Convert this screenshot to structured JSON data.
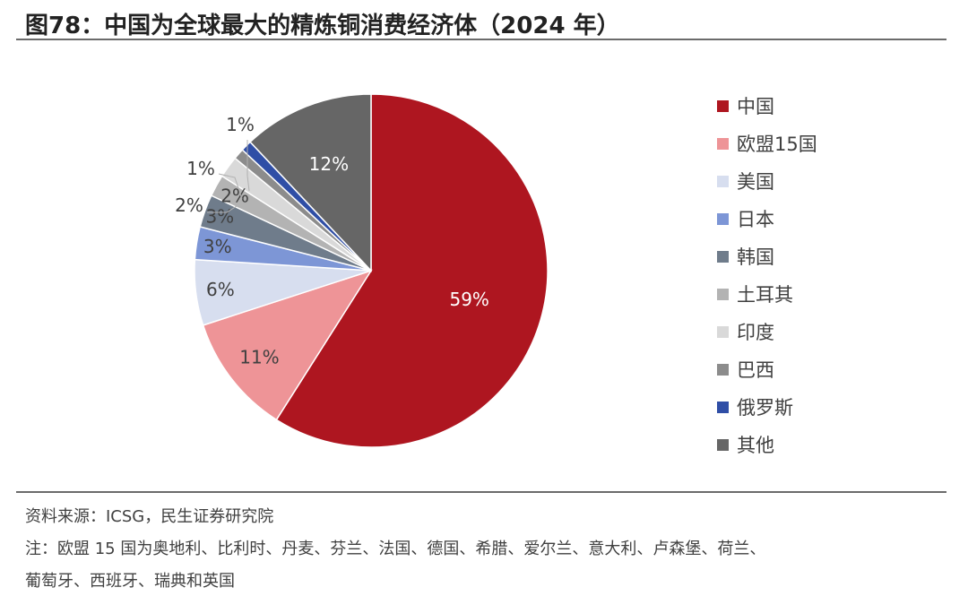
{
  "page": {
    "title": "图78：中国为全球最大的精炼铜消费经济体（2024 年）",
    "source": "资料来源：ICSG，民生证券研究院",
    "note_line1": "注：欧盟 15 国为奥地利、比利时、丹麦、芬兰、法国、德国、希腊、爱尔兰、意大利、卢森堡、荷兰、",
    "note_line2": "葡萄牙、西班牙、瑞典和英国"
  },
  "chart_data": {
    "type": "pie",
    "start_angle_deg": 0,
    "direction": "clockwise",
    "legend_position": "right",
    "slices": [
      {
        "label": "中国",
        "value": 59,
        "display": "59%",
        "color": "#ae1620"
      },
      {
        "label": "欧盟15国",
        "value": 11,
        "display": "11%",
        "color": "#ee9497"
      },
      {
        "label": "美国",
        "value": 6,
        "display": "6%",
        "color": "#d7deef"
      },
      {
        "label": "日本",
        "value": 3,
        "display": "3%",
        "color": "#7d96d6"
      },
      {
        "label": "韩国",
        "value": 3,
        "display": "3%",
        "color": "#6f7c8b"
      },
      {
        "label": "土耳其",
        "value": 2,
        "display": "2%",
        "color": "#b3b3b3"
      },
      {
        "label": "印度",
        "value": 2,
        "display": "2%",
        "color": "#d9d9d9"
      },
      {
        "label": "巴西",
        "value": 1,
        "display": "1%",
        "color": "#8c8c8c"
      },
      {
        "label": "俄罗斯",
        "value": 1,
        "display": "1%",
        "color": "#2f4ea6"
      },
      {
        "label": "其他",
        "value": 12,
        "display": "12%",
        "color": "#666666"
      }
    ]
  }
}
